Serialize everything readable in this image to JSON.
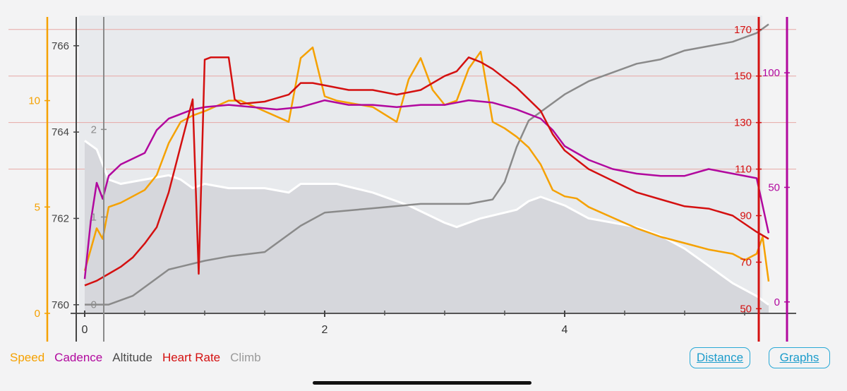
{
  "chart_data": {
    "type": "line",
    "xlabel": "",
    "x_ticks": [
      "0",
      "2",
      "4"
    ],
    "xlim": [
      0,
      5.75
    ],
    "axes": {
      "speed": {
        "ticks": [
          "0",
          "5",
          "10"
        ],
        "range": [
          0,
          14
        ],
        "color": "#f5a100"
      },
      "altitude": {
        "ticks": [
          "760",
          "762",
          "764",
          "766"
        ],
        "range": [
          759.8,
          766.7
        ],
        "color": "#444444"
      },
      "climb": {
        "ticks": [
          "0",
          "1",
          "2"
        ],
        "range": [
          -0.1,
          3.3
        ],
        "color": "#8a8a8a"
      },
      "heart_rate": {
        "ticks": [
          "50",
          "70",
          "90",
          "110",
          "130",
          "150",
          "170"
        ],
        "range": [
          48,
          176
        ],
        "color": "#d41010"
      },
      "cadence": {
        "ticks": [
          "0",
          "50",
          "100"
        ],
        "range": [
          -5,
          125
        ],
        "color": "#b1089e"
      }
    },
    "heart_rate_reference_lines": [
      110,
      130,
      150,
      170
    ],
    "series": [
      {
        "name": "Altitude",
        "axis": "altitude",
        "color": "#ffffff",
        "fill": "#d6d7dc",
        "x": [
          0,
          0.1,
          0.2,
          0.3,
          0.5,
          0.7,
          0.8,
          0.9,
          1.0,
          1.2,
          1.5,
          1.7,
          1.8,
          2.0,
          2.1,
          2.4,
          2.7,
          3.0,
          3.1,
          3.3,
          3.6,
          3.7,
          3.8,
          4.0,
          4.2,
          4.6,
          4.8,
          5.0,
          5.2,
          5.4,
          5.6,
          5.7
        ],
        "y": [
          763.8,
          763.6,
          762.9,
          762.8,
          762.9,
          763.0,
          762.9,
          762.7,
          762.8,
          762.7,
          762.7,
          762.6,
          762.8,
          762.8,
          762.8,
          762.6,
          762.3,
          761.9,
          761.8,
          762.0,
          762.2,
          762.4,
          762.5,
          762.3,
          762.0,
          761.8,
          761.6,
          761.3,
          760.9,
          760.5,
          760.2,
          760.0
        ]
      },
      {
        "name": "Climb",
        "axis": "climb",
        "color": "#8a8a8a",
        "x": [
          0,
          0.2,
          0.4,
          0.6,
          0.7,
          1.0,
          1.2,
          1.5,
          1.7,
          1.8,
          2.0,
          2.4,
          2.8,
          3.2,
          3.4,
          3.5,
          3.6,
          3.7,
          3.8,
          4.0,
          4.2,
          4.4,
          4.6,
          4.8,
          5.0,
          5.2,
          5.4,
          5.5,
          5.6,
          5.7
        ],
        "y": [
          0.0,
          0.0,
          0.1,
          0.3,
          0.4,
          0.5,
          0.55,
          0.6,
          0.8,
          0.9,
          1.05,
          1.1,
          1.15,
          1.15,
          1.2,
          1.4,
          1.8,
          2.1,
          2.2,
          2.4,
          2.55,
          2.65,
          2.75,
          2.8,
          2.9,
          2.95,
          3.0,
          3.05,
          3.1,
          3.2
        ]
      },
      {
        "name": "Speed",
        "axis": "speed",
        "color": "#f5a100",
        "x": [
          0,
          0.05,
          0.1,
          0.15,
          0.2,
          0.3,
          0.5,
          0.6,
          0.7,
          0.8,
          0.9,
          1.0,
          1.2,
          1.3,
          1.5,
          1.7,
          1.8,
          1.9,
          2.0,
          2.1,
          2.2,
          2.4,
          2.6,
          2.7,
          2.8,
          2.9,
          3.0,
          3.1,
          3.2,
          3.3,
          3.4,
          3.5,
          3.6,
          3.7,
          3.8,
          3.9,
          4.0,
          4.1,
          4.2,
          4.4,
          4.6,
          4.8,
          5.0,
          5.2,
          5.4,
          5.5,
          5.6,
          5.65,
          5.7
        ],
        "y": [
          2.0,
          3.0,
          4.0,
          3.5,
          5.0,
          5.2,
          5.8,
          6.5,
          8.0,
          9.0,
          9.3,
          9.5,
          10.0,
          10.0,
          9.5,
          9.0,
          12.0,
          12.5,
          10.2,
          10.0,
          9.9,
          9.7,
          9.0,
          11.0,
          12.0,
          10.5,
          9.8,
          10.0,
          11.5,
          12.3,
          9.0,
          8.7,
          8.3,
          7.8,
          7.0,
          5.8,
          5.5,
          5.4,
          5.0,
          4.5,
          4.0,
          3.6,
          3.3,
          3.0,
          2.8,
          2.5,
          2.8,
          3.6,
          1.5
        ]
      },
      {
        "name": "Cadence",
        "axis": "cadence",
        "color": "#b1089e",
        "x": [
          0,
          0.05,
          0.1,
          0.15,
          0.2,
          0.3,
          0.5,
          0.6,
          0.7,
          0.8,
          0.9,
          1.0,
          1.2,
          1.4,
          1.6,
          1.8,
          2.0,
          2.2,
          2.4,
          2.6,
          2.8,
          3.0,
          3.2,
          3.4,
          3.6,
          3.8,
          3.9,
          4.0,
          4.2,
          4.4,
          4.6,
          4.8,
          5.0,
          5.2,
          5.4,
          5.6,
          5.7
        ],
        "y": [
          10,
          35,
          52,
          45,
          55,
          60,
          65,
          75,
          80,
          82,
          84,
          85,
          86,
          85,
          84,
          85,
          88,
          86,
          86,
          85,
          86,
          86,
          88,
          87,
          84,
          80,
          75,
          68,
          62,
          58,
          56,
          55,
          55,
          58,
          56,
          54,
          30
        ]
      },
      {
        "name": "Heart Rate",
        "axis": "heart_rate",
        "color": "#d41010",
        "x": [
          0,
          0.1,
          0.2,
          0.3,
          0.4,
          0.5,
          0.6,
          0.7,
          0.8,
          0.9,
          0.95,
          1.0,
          1.05,
          1.1,
          1.2,
          1.25,
          1.3,
          1.5,
          1.7,
          1.8,
          1.9,
          2.0,
          2.2,
          2.4,
          2.6,
          2.8,
          3.0,
          3.1,
          3.2,
          3.3,
          3.4,
          3.6,
          3.8,
          3.9,
          4.0,
          4.2,
          4.4,
          4.6,
          4.8,
          5.0,
          5.2,
          5.4,
          5.6,
          5.7
        ],
        "y": [
          60,
          62,
          65,
          68,
          72,
          78,
          85,
          100,
          120,
          140,
          65,
          157,
          158,
          158,
          158,
          140,
          138,
          139,
          142,
          147,
          147,
          146,
          144,
          144,
          142,
          144,
          150,
          152,
          158,
          156,
          153,
          145,
          135,
          125,
          118,
          110,
          105,
          100,
          97,
          94,
          93,
          90,
          83,
          80
        ]
      }
    ],
    "legend": [
      {
        "label": "Speed",
        "color": "#f5a100"
      },
      {
        "label": "Cadence",
        "color": "#b1089e"
      },
      {
        "label": "Altitude",
        "color": "#4a4a4a"
      },
      {
        "label": "Heart Rate",
        "color": "#d41010"
      },
      {
        "label": "Climb",
        "color": "#9a9a9a"
      }
    ],
    "grid": true
  },
  "buttons": {
    "distance": "Distance",
    "graphs": "Graphs"
  }
}
